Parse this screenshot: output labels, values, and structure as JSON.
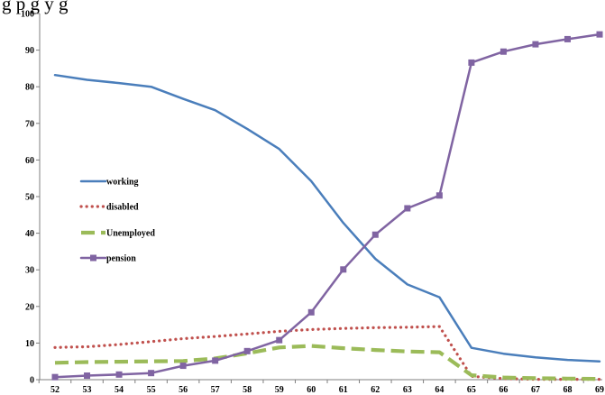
{
  "page": {
    "top_cut_text": "g      p                               g           y  g"
  },
  "chart_data": {
    "type": "line",
    "title": "",
    "xlabel": "",
    "ylabel": "",
    "x": [
      52,
      53,
      54,
      55,
      56,
      57,
      58,
      59,
      60,
      61,
      62,
      63,
      64,
      65,
      66,
      67,
      68,
      69
    ],
    "x_tick_labels": [
      "52",
      "53",
      "54",
      "55",
      "56",
      "57",
      "58",
      "59",
      "60",
      "61",
      "62",
      "63",
      "64",
      "65",
      "66",
      "67",
      "68",
      "69"
    ],
    "ylim": [
      0,
      100
    ],
    "y_ticks": [
      0,
      10,
      20,
      30,
      40,
      50,
      60,
      70,
      80,
      90,
      100
    ],
    "y_tick_labels": [
      "0",
      "10",
      "20",
      "30",
      "40",
      "50",
      "60",
      "70",
      "80",
      "90",
      "100"
    ],
    "grid": false,
    "legend": {
      "placement": "left-middle",
      "entries": [
        "working",
        "disabled",
        "Unemployed",
        "pension"
      ]
    },
    "series": [
      {
        "name": "working",
        "color": "#4a7ebb",
        "style": "solid",
        "marker": "none",
        "values": [
          83.2,
          81.9,
          81.0,
          80.0,
          76.7,
          73.6,
          68.5,
          63.0,
          54.2,
          42.8,
          33.0,
          26.0,
          22.5,
          8.7,
          7.1,
          6.1,
          5.4,
          5.0
        ]
      },
      {
        "name": "disabled",
        "color": "#c0504d",
        "style": "dotted",
        "marker": "none",
        "values": [
          8.8,
          9.0,
          9.6,
          10.4,
          11.2,
          11.8,
          12.5,
          13.2,
          13.7,
          14.0,
          14.2,
          14.3,
          14.5,
          0.9,
          0.3,
          0.1,
          0.1,
          0.1
        ]
      },
      {
        "name": "Unemployed",
        "color": "#9bbb59",
        "style": "dashed",
        "marker": "none",
        "values": [
          4.6,
          4.8,
          4.9,
          5.0,
          5.1,
          5.8,
          7.2,
          8.8,
          9.2,
          8.6,
          8.1,
          7.7,
          7.5,
          1.2,
          0.6,
          0.4,
          0.3,
          0.2
        ]
      },
      {
        "name": "pension",
        "color": "#8064a2",
        "style": "solid",
        "marker": "square",
        "values": [
          0.7,
          1.1,
          1.4,
          1.8,
          3.8,
          5.2,
          7.8,
          10.8,
          18.4,
          30.1,
          39.6,
          46.8,
          50.3,
          86.6,
          89.6,
          91.6,
          93.0,
          94.3
        ]
      }
    ]
  }
}
